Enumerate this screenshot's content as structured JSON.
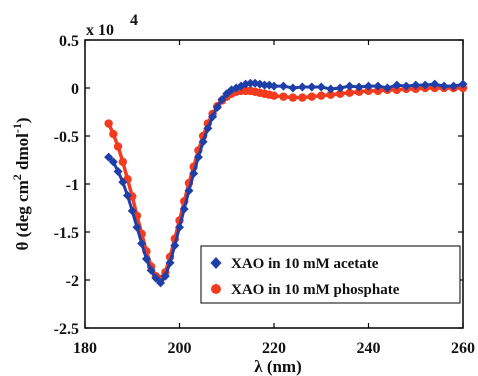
{
  "chart_data": {
    "type": "scatter",
    "xlabel": "λ  (nm)",
    "ylabel_main": "θ  (deg cm",
    "ylabel_sup1": "2",
    "ylabel_mid": " dmol",
    "ylabel_sup2": "-1",
    "ylabel_end": ")",
    "y_multiplier": "x 10",
    "y_multiplier_exp": "4",
    "xlim": [
      180,
      260
    ],
    "ylim": [
      -2.5,
      0.5
    ],
    "x_ticks": [
      180,
      200,
      220,
      240,
      260
    ],
    "x_tick_labels": [
      "180",
      "200",
      "220",
      "240",
      "260"
    ],
    "y_ticks": [
      -2.5,
      -2,
      -1.5,
      -1,
      -0.5,
      0,
      0.5
    ],
    "y_tick_labels": [
      "-2.5",
      "-2",
      "-1.5",
      "-1",
      "-0.5",
      "0",
      "0.5"
    ],
    "legend_position": "lower-right",
    "series": [
      {
        "name": "XAO in 10 mM acetate",
        "color": "#1f3fa8",
        "marker": "diamond",
        "x": [
          185,
          186,
          187,
          188,
          189,
          190,
          191,
          192,
          193,
          194,
          195,
          196,
          197,
          198,
          199,
          200,
          201,
          202,
          203,
          204,
          205,
          206,
          207,
          208,
          209,
          210,
          211,
          212,
          213,
          214,
          215,
          216,
          217,
          218,
          219,
          220,
          222,
          224,
          226,
          228,
          230,
          232,
          234,
          236,
          238,
          240,
          242,
          244,
          246,
          248,
          250,
          252,
          254,
          256,
          258,
          260
        ],
        "y": [
          -0.72,
          -0.77,
          -0.87,
          -0.98,
          -1.12,
          -1.28,
          -1.45,
          -1.62,
          -1.78,
          -1.9,
          -1.98,
          -2.03,
          -1.96,
          -1.82,
          -1.64,
          -1.45,
          -1.26,
          -1.07,
          -0.89,
          -0.72,
          -0.56,
          -0.42,
          -0.3,
          -0.2,
          -0.12,
          -0.06,
          -0.02,
          0.0,
          0.02,
          0.04,
          0.05,
          0.05,
          0.04,
          0.03,
          0.03,
          0.02,
          0.02,
          0.0,
          0.01,
          0.01,
          0.01,
          -0.01,
          0.0,
          0.02,
          0.01,
          0.02,
          0.02,
          0.0,
          0.03,
          0.02,
          0.03,
          0.03,
          0.04,
          0.02,
          0.02,
          0.04
        ]
      },
      {
        "name": "XAO in 10 mM phosphate",
        "color": "#f23b1f",
        "marker": "circle",
        "x": [
          185,
          186,
          187,
          188,
          189,
          190,
          191,
          192,
          193,
          194,
          195,
          196,
          197,
          198,
          199,
          200,
          201,
          202,
          203,
          204,
          205,
          206,
          207,
          208,
          209,
          210,
          211,
          212,
          213,
          214,
          215,
          216,
          217,
          218,
          219,
          220,
          222,
          224,
          226,
          228,
          230,
          232,
          234,
          236,
          238,
          240,
          242,
          244,
          246,
          248,
          250,
          252,
          254,
          256,
          258,
          260
        ],
        "y": [
          -0.37,
          -0.48,
          -0.61,
          -0.77,
          -0.95,
          -1.13,
          -1.33,
          -1.52,
          -1.7,
          -1.86,
          -1.96,
          -1.99,
          -1.92,
          -1.76,
          -1.57,
          -1.38,
          -1.18,
          -0.99,
          -0.82,
          -0.65,
          -0.5,
          -0.37,
          -0.27,
          -0.19,
          -0.13,
          -0.09,
          -0.06,
          -0.04,
          -0.03,
          -0.03,
          -0.03,
          -0.04,
          -0.05,
          -0.06,
          -0.07,
          -0.08,
          -0.09,
          -0.1,
          -0.1,
          -0.09,
          -0.08,
          -0.07,
          -0.06,
          -0.05,
          -0.04,
          -0.03,
          -0.03,
          -0.02,
          -0.02,
          -0.01,
          -0.01,
          0.0,
          0.0,
          0.0,
          0.0,
          0.0
        ]
      }
    ]
  }
}
